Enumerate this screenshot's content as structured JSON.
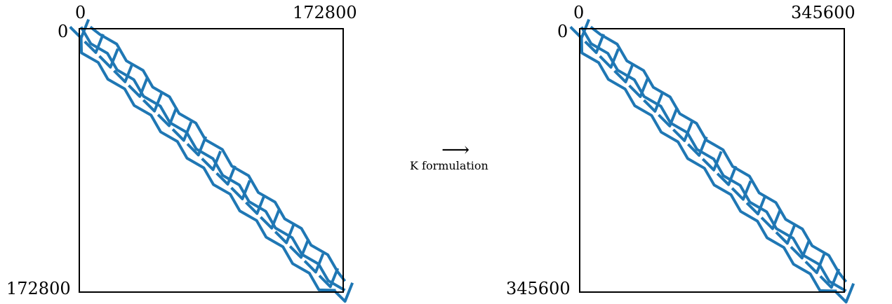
{
  "left_matrix": {
    "x_tick_start": "0",
    "x_tick_end": "172800",
    "y_tick_start": "0",
    "y_tick_end": "172800"
  },
  "right_matrix": {
    "x_tick_start": "0",
    "x_tick_end": "345600",
    "y_tick_start": "0",
    "y_tick_end": "345600"
  },
  "transform": {
    "arrow": "⟶",
    "caption": "K formulation"
  },
  "colors": {
    "pattern": "#1f77b4",
    "frame": "#000000"
  }
}
